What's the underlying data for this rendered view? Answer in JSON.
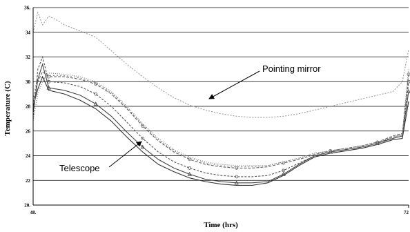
{
  "chart_data": {
    "type": "line",
    "title": "",
    "xlabel": "Time (hrs)",
    "ylabel": "Temperature (C)",
    "xlim": [
      48,
      72
    ],
    "ylim": [
      20,
      36
    ],
    "x_ticks": [
      48,
      72
    ],
    "x_tick_labels": [
      "48.",
      "72"
    ],
    "y_ticks": [
      20,
      22,
      24,
      26,
      28,
      30,
      32,
      34,
      36
    ],
    "y_tick_labels": [
      "20.",
      "22",
      "24",
      "26",
      "28",
      "30",
      "32",
      "34",
      "36."
    ],
    "grid": "horizontal",
    "annotations": [
      {
        "text": "Pointing mirror",
        "target_series": "pointing-mirror"
      },
      {
        "text": "Telescope",
        "target_series": "telescope"
      }
    ],
    "series": [
      {
        "id": "pointing-mirror",
        "color": "#9a9a9a",
        "dash": "2,2",
        "x": [
          48,
          48.3,
          48.6,
          49,
          49.5,
          50,
          51,
          52,
          53,
          54,
          55,
          56,
          57,
          58,
          59,
          60,
          61,
          62,
          63,
          64,
          65,
          66,
          67,
          68,
          69,
          70,
          71,
          71.6,
          72
        ],
        "y": [
          34.0,
          35.6,
          34.6,
          35.3,
          35.0,
          34.6,
          34.1,
          33.6,
          32.5,
          31.4,
          30.4,
          29.5,
          28.7,
          28.1,
          27.7,
          27.4,
          27.2,
          27.1,
          27.1,
          27.2,
          27.4,
          27.7,
          28.0,
          28.3,
          28.6,
          28.9,
          29.2,
          30.0,
          32.6
        ]
      },
      {
        "id": "telescope",
        "color": "#333333",
        "dash": "none",
        "x": [
          48,
          48.3,
          48.6,
          49,
          50,
          51,
          52,
          53,
          54,
          55,
          56,
          57,
          58,
          59,
          60,
          61,
          62,
          63,
          64,
          65,
          66,
          67,
          68,
          69,
          70,
          71,
          71.6,
          72
        ],
        "y": [
          28.0,
          29.4,
          30.4,
          29.3,
          29.0,
          28.5,
          27.8,
          26.8,
          25.5,
          24.3,
          23.3,
          22.7,
          22.2,
          21.9,
          21.7,
          21.6,
          21.6,
          21.8,
          22.4,
          23.2,
          23.9,
          24.2,
          24.4,
          24.6,
          24.9,
          25.3,
          25.4,
          28.4
        ]
      },
      {
        "id": "s3",
        "color": "#444444",
        "dash": "none",
        "marker": "^",
        "x": [
          48,
          48.3,
          48.6,
          49,
          50,
          51,
          52,
          53,
          54,
          55,
          56,
          57,
          58,
          59,
          60,
          61,
          62,
          63,
          64,
          65,
          66,
          67,
          68,
          69,
          70,
          71,
          71.6,
          72
        ],
        "y": [
          27.5,
          30.2,
          31.4,
          29.5,
          29.3,
          28.9,
          28.2,
          27.2,
          25.9,
          24.7,
          23.7,
          23.0,
          22.5,
          22.1,
          21.9,
          21.8,
          21.8,
          21.9,
          22.5,
          23.3,
          24.0,
          24.3,
          24.5,
          24.7,
          25.0,
          25.4,
          25.6,
          29.2
        ]
      },
      {
        "id": "s4",
        "color": "#555555",
        "dash": "3,2",
        "marker": "o",
        "x": [
          48,
          48.3,
          48.6,
          49,
          50,
          51,
          52,
          53,
          54,
          55,
          56,
          57,
          58,
          59,
          60,
          61,
          62,
          63,
          64,
          65,
          66,
          67,
          68,
          69,
          70,
          71,
          71.6,
          72
        ],
        "y": [
          27.0,
          31.0,
          32.0,
          30.0,
          29.9,
          29.6,
          29.0,
          28.0,
          26.7,
          25.4,
          24.3,
          23.5,
          23.0,
          22.6,
          22.4,
          22.3,
          22.3,
          22.4,
          22.8,
          23.4,
          24.0,
          24.3,
          24.5,
          24.7,
          25.0,
          25.5,
          25.7,
          30.0
        ]
      },
      {
        "id": "s5",
        "color": "#666666",
        "dash": "4,2",
        "marker": "o",
        "x": [
          48,
          48.3,
          48.6,
          49,
          50,
          51,
          52,
          53,
          54,
          55,
          56,
          57,
          58,
          59,
          60,
          61,
          62,
          63,
          64,
          65,
          66,
          67,
          68,
          69,
          70,
          71,
          71.6,
          72
        ],
        "y": [
          28.3,
          30.0,
          30.8,
          30.4,
          30.4,
          30.2,
          29.8,
          29.0,
          27.8,
          26.4,
          25.2,
          24.3,
          23.7,
          23.3,
          23.1,
          23.0,
          23.0,
          23.1,
          23.4,
          23.7,
          24.1,
          24.4,
          24.6,
          24.8,
          25.1,
          25.6,
          25.8,
          30.6
        ]
      },
      {
        "id": "s6",
        "color": "#777777",
        "dash": "1,2",
        "x": [
          48,
          48.3,
          48.6,
          49,
          50,
          51,
          52,
          53,
          54,
          55,
          56,
          57,
          58,
          59,
          60,
          61,
          62,
          63,
          64,
          65,
          66,
          67,
          68,
          69,
          70,
          71,
          71.6,
          72
        ],
        "y": [
          26.8,
          29.0,
          30.0,
          30.7,
          30.6,
          30.4,
          30.0,
          29.2,
          28.0,
          26.6,
          25.4,
          24.5,
          23.9,
          23.5,
          23.3,
          23.2,
          23.2,
          23.2,
          23.5,
          23.8,
          24.2,
          24.4,
          24.6,
          24.8,
          25.1,
          25.5,
          25.7,
          31.0
        ]
      },
      {
        "id": "s7",
        "color": "#888888",
        "dash": "2,3",
        "x": [
          48,
          48.3,
          48.6,
          49,
          50,
          51,
          52,
          53,
          54,
          55,
          56,
          57,
          58,
          59,
          60,
          61,
          62,
          63,
          64,
          65,
          66,
          67,
          68,
          69,
          70,
          71,
          71.6,
          72
        ],
        "y": [
          28.5,
          30.6,
          30.2,
          30.5,
          30.5,
          30.3,
          29.9,
          29.1,
          27.9,
          26.5,
          25.3,
          24.4,
          23.8,
          23.4,
          23.2,
          23.1,
          23.1,
          23.2,
          23.5,
          23.8,
          24.2,
          24.4,
          24.6,
          24.8,
          25.1,
          25.5,
          25.7,
          29.7
        ]
      }
    ]
  }
}
